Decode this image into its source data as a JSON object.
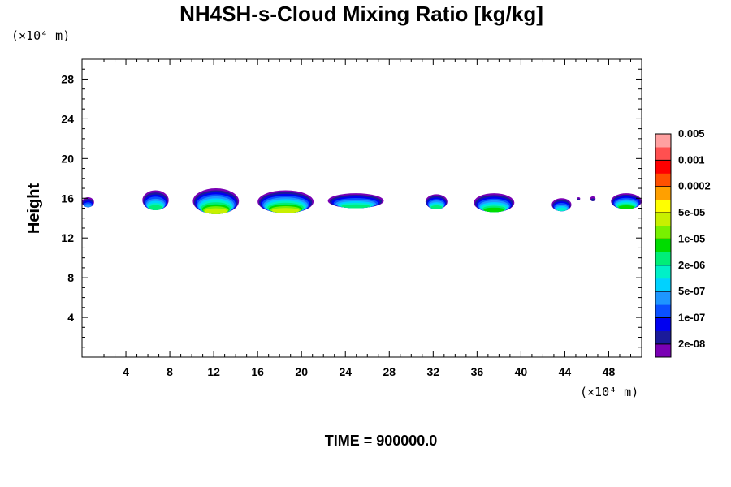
{
  "chart_data": {
    "type": "heatmap",
    "title": "NH4SH-s-Cloud Mixing Ratio [kg/kg]",
    "ylabel": "Height",
    "x_units_label": "(×10⁴ m)",
    "y_units_label": "(×10⁴ m)",
    "xlim": [
      0,
      51
    ],
    "ylim": [
      0,
      30
    ],
    "x_ticks": [
      4,
      8,
      12,
      16,
      20,
      24,
      28,
      32,
      36,
      40,
      44,
      48
    ],
    "y_ticks": [
      4,
      8,
      12,
      16,
      20,
      24,
      28
    ],
    "time_label": "TIME = 900000.0",
    "colorbar": {
      "colors": [
        "#7a00b4",
        "#1a1a9a",
        "#0000f0",
        "#0a50ff",
        "#1e96ff",
        "#00d2ff",
        "#00f0c8",
        "#00ee78",
        "#00dc00",
        "#78f000",
        "#c8f000",
        "#ffff00",
        "#ffa000",
        "#ff5000",
        "#ff0000",
        "#ff5050",
        "#ffa0a0"
      ],
      "labels": [
        "2e-08",
        "1e-07",
        "5e-07",
        "2e-06",
        "1e-05",
        "5e-05",
        "0.0002",
        "0.001",
        "0.005"
      ]
    },
    "clouds": [
      {
        "x0": 0.0,
        "x1": 1.1,
        "top": 16.1,
        "bottom": 15.1,
        "level": 4
      },
      {
        "x0": 5.5,
        "x1": 7.9,
        "top": 16.8,
        "bottom": 14.8,
        "level": 7
      },
      {
        "x0": 10.1,
        "x1": 14.3,
        "top": 17.0,
        "bottom": 14.4,
        "level": 10
      },
      {
        "x0": 16.0,
        "x1": 21.1,
        "top": 16.8,
        "bottom": 14.5,
        "level": 10
      },
      {
        "x0": 22.4,
        "x1": 27.5,
        "top": 16.5,
        "bottom": 15.0,
        "level": 7
      },
      {
        "x0": 31.3,
        "x1": 33.3,
        "top": 16.4,
        "bottom": 14.9,
        "level": 7
      },
      {
        "x0": 35.7,
        "x1": 39.4,
        "top": 16.5,
        "bottom": 14.6,
        "level": 8
      },
      {
        "x0": 42.8,
        "x1": 44.6,
        "top": 16.0,
        "bottom": 14.7,
        "level": 6
      },
      {
        "x0": 45.1,
        "x1": 45.4,
        "top": 16.1,
        "bottom": 15.8,
        "level": 1
      },
      {
        "x0": 46.3,
        "x1": 46.8,
        "top": 16.2,
        "bottom": 15.7,
        "level": 1
      },
      {
        "x0": 48.2,
        "x1": 51.0,
        "top": 16.5,
        "bottom": 14.9,
        "level": 8
      }
    ]
  }
}
